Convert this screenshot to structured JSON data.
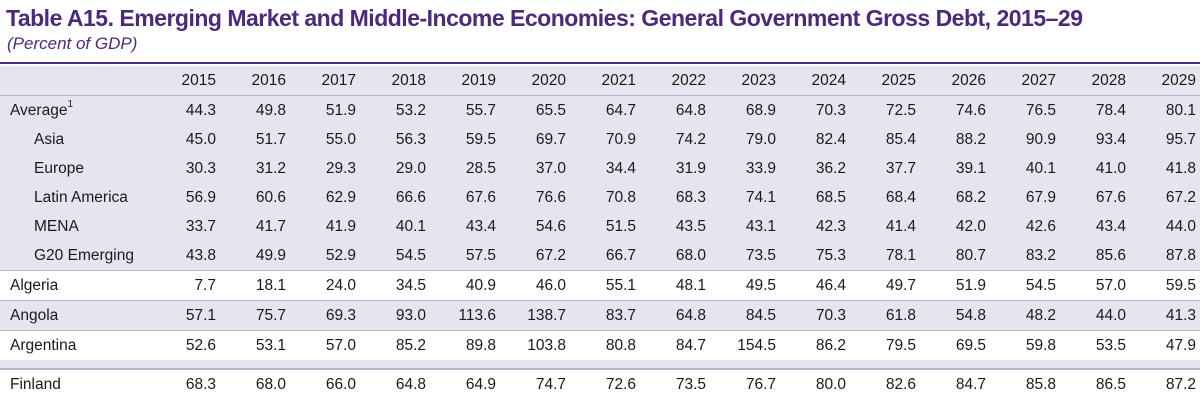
{
  "title": "Table A15. Emerging Market and Middle-Income Economies: General Government Gross Debt, 2015–29",
  "subtitle": "(Percent of GDP)",
  "years": [
    "2015",
    "2016",
    "2017",
    "2018",
    "2019",
    "2020",
    "2021",
    "2022",
    "2023",
    "2024",
    "2025",
    "2026",
    "2027",
    "2028",
    "2029"
  ],
  "average": {
    "label": "Average",
    "footnote": "1",
    "values": [
      "44.3",
      "49.8",
      "51.9",
      "53.2",
      "55.7",
      "65.5",
      "64.7",
      "64.8",
      "68.9",
      "70.3",
      "72.5",
      "74.6",
      "76.5",
      "78.4",
      "80.1"
    ]
  },
  "regions": [
    {
      "label": "Asia",
      "values": [
        "45.0",
        "51.7",
        "55.0",
        "56.3",
        "59.5",
        "69.7",
        "70.9",
        "74.2",
        "79.0",
        "82.4",
        "85.4",
        "88.2",
        "90.9",
        "93.4",
        "95.7"
      ]
    },
    {
      "label": "Europe",
      "values": [
        "30.3",
        "31.2",
        "29.3",
        "29.0",
        "28.5",
        "37.0",
        "34.4",
        "31.9",
        "33.9",
        "36.2",
        "37.7",
        "39.1",
        "40.1",
        "41.0",
        "41.8"
      ]
    },
    {
      "label": "Latin America",
      "values": [
        "56.9",
        "60.6",
        "62.9",
        "66.6",
        "67.6",
        "76.6",
        "70.8",
        "68.3",
        "74.1",
        "68.5",
        "68.4",
        "68.2",
        "67.9",
        "67.6",
        "67.2"
      ]
    },
    {
      "label": "MENA",
      "values": [
        "33.7",
        "41.7",
        "41.9",
        "40.1",
        "43.4",
        "54.6",
        "51.5",
        "43.5",
        "43.1",
        "42.3",
        "41.4",
        "42.0",
        "42.6",
        "43.4",
        "44.0"
      ]
    },
    {
      "label": "G20 Emerging",
      "values": [
        "43.8",
        "49.9",
        "52.9",
        "54.5",
        "57.5",
        "67.2",
        "66.7",
        "68.0",
        "73.5",
        "75.3",
        "78.1",
        "80.7",
        "83.2",
        "85.6",
        "87.8"
      ]
    }
  ],
  "countries": [
    {
      "label": "Algeria",
      "values": [
        "7.7",
        "18.1",
        "24.0",
        "34.5",
        "40.9",
        "46.0",
        "55.1",
        "48.1",
        "49.5",
        "46.4",
        "49.7",
        "51.9",
        "54.5",
        "57.0",
        "59.5"
      ]
    },
    {
      "label": "Angola",
      "values": [
        "57.1",
        "75.7",
        "69.3",
        "93.0",
        "113.6",
        "138.7",
        "83.7",
        "64.8",
        "84.5",
        "70.3",
        "61.8",
        "54.8",
        "48.2",
        "44.0",
        "41.3"
      ]
    },
    {
      "label": "Argentina",
      "values": [
        "52.6",
        "53.1",
        "57.0",
        "85.2",
        "89.8",
        "103.8",
        "80.8",
        "84.7",
        "154.5",
        "86.2",
        "79.5",
        "69.5",
        "59.8",
        "53.5",
        "47.9"
      ]
    }
  ],
  "final": {
    "label": "Finland",
    "values": [
      "68.3",
      "68.0",
      "66.0",
      "64.8",
      "64.9",
      "74.7",
      "72.6",
      "73.5",
      "76.7",
      "80.0",
      "82.6",
      "84.7",
      "85.8",
      "86.5",
      "87.2"
    ]
  }
}
